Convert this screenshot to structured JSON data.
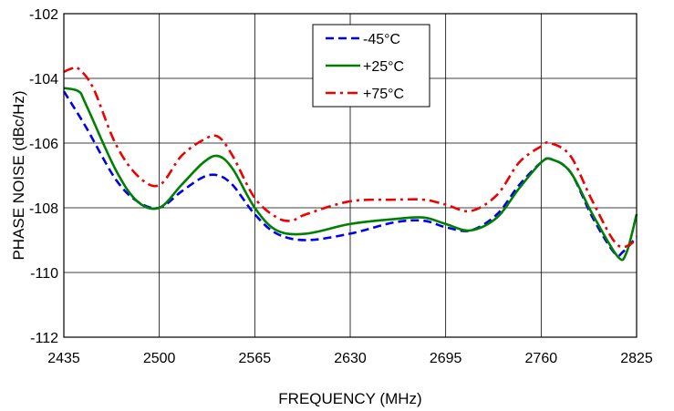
{
  "chart_data": {
    "type": "line",
    "title": "",
    "xlabel": "FREQUENCY (MHz)",
    "ylabel": "PHASE NOISE  (dBc/Hz)",
    "xlim": [
      2435,
      2825
    ],
    "ylim": [
      -112,
      -102
    ],
    "x_ticks": [
      2435,
      2500,
      2565,
      2630,
      2695,
      2760,
      2825
    ],
    "x_tick_labels": [
      "2435",
      "2500",
      "2565",
      "2630",
      "2695",
      "2760",
      "2825"
    ],
    "y_ticks": [
      -112,
      -110,
      -108,
      -106,
      -104,
      -102
    ],
    "y_tick_labels": [
      "-112",
      "-110",
      "-108",
      "-106",
      "-104",
      "-102"
    ],
    "grid": true,
    "legend_position": "top-center",
    "series": [
      {
        "name": "-45°C",
        "color": "#0000ee",
        "dash": "dash",
        "x": [
          2435,
          2450,
          2470,
          2485,
          2500,
          2515,
          2530,
          2540,
          2550,
          2565,
          2580,
          2600,
          2630,
          2660,
          2680,
          2695,
          2712,
          2730,
          2745,
          2760,
          2767,
          2780,
          2795,
          2810,
          2816,
          2825
        ],
        "y": [
          -104.4,
          -105.5,
          -107.1,
          -107.8,
          -108.0,
          -107.5,
          -107.05,
          -107.0,
          -107.3,
          -108.2,
          -108.8,
          -109.0,
          -108.8,
          -108.45,
          -108.4,
          -108.6,
          -108.7,
          -108.2,
          -107.3,
          -106.6,
          -106.5,
          -106.9,
          -108.3,
          -109.4,
          -109.35,
          -108.9
        ]
      },
      {
        "name": "+25°C",
        "color": "#008000",
        "dash": "solid",
        "x": [
          2435,
          2445,
          2450,
          2470,
          2485,
          2500,
          2515,
          2530,
          2540,
          2550,
          2565,
          2580,
          2600,
          2630,
          2660,
          2680,
          2695,
          2712,
          2730,
          2745,
          2760,
          2767,
          2780,
          2795,
          2812,
          2818,
          2825
        ],
        "y": [
          -104.3,
          -104.4,
          -104.8,
          -106.8,
          -107.8,
          -108.0,
          -107.3,
          -106.6,
          -106.4,
          -106.8,
          -108.0,
          -108.7,
          -108.8,
          -108.5,
          -108.35,
          -108.3,
          -108.5,
          -108.7,
          -108.3,
          -107.4,
          -106.6,
          -106.5,
          -106.9,
          -108.2,
          -109.5,
          -109.4,
          -108.2
        ]
      },
      {
        "name": "+75°C",
        "color": "#ee0000",
        "dash": "dashdot",
        "x": [
          2435,
          2440,
          2445,
          2455,
          2470,
          2485,
          2500,
          2515,
          2530,
          2540,
          2550,
          2565,
          2580,
          2590,
          2600,
          2630,
          2660,
          2680,
          2695,
          2712,
          2730,
          2745,
          2760,
          2766,
          2780,
          2795,
          2812,
          2825
        ],
        "y": [
          -103.8,
          -103.7,
          -103.7,
          -104.3,
          -106.0,
          -107.0,
          -107.3,
          -106.4,
          -105.9,
          -105.8,
          -106.4,
          -107.7,
          -108.3,
          -108.4,
          -108.2,
          -107.8,
          -107.75,
          -107.75,
          -107.9,
          -108.1,
          -107.6,
          -106.6,
          -106.1,
          -106.0,
          -106.4,
          -107.8,
          -109.15,
          -109.0
        ]
      }
    ]
  }
}
